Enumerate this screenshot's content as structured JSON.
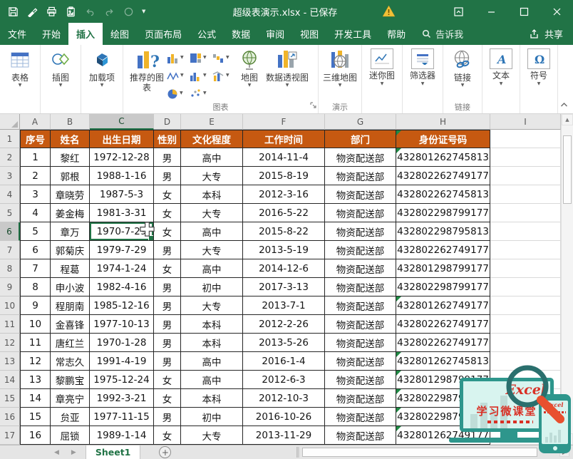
{
  "titlebar": {
    "title": "超级表演示.xlsx - 已保存",
    "quick_access_icons": [
      "save-icon",
      "format-painter-icon",
      "print-icon",
      "paste-picture-icon",
      "undo-icon",
      "redo-icon",
      "circle-icon",
      "customize-qat-caret-icon"
    ],
    "warning_icon": "warning-triangle-icon",
    "window_icons": [
      "ribbon-display-options-icon",
      "minimize-icon",
      "maximize-icon",
      "close-icon"
    ]
  },
  "tabs": [
    {
      "id": "file",
      "label": "文件",
      "active": false
    },
    {
      "id": "home",
      "label": "开始",
      "active": false
    },
    {
      "id": "insert",
      "label": "插入",
      "active": true
    },
    {
      "id": "draw",
      "label": "绘图",
      "active": false
    },
    {
      "id": "page-layout",
      "label": "页面布局",
      "active": false
    },
    {
      "id": "formulas",
      "label": "公式",
      "active": false
    },
    {
      "id": "data",
      "label": "数据",
      "active": false
    },
    {
      "id": "review",
      "label": "审阅",
      "active": false
    },
    {
      "id": "view",
      "label": "视图",
      "active": false
    },
    {
      "id": "developer",
      "label": "开发工具",
      "active": false
    },
    {
      "id": "help",
      "label": "帮助",
      "active": false
    }
  ],
  "tell_me": {
    "label": "告诉我",
    "icon": "search-icon"
  },
  "share": {
    "label": "共享",
    "icon": "share-icon"
  },
  "ribbon": {
    "tables": {
      "label": "表格"
    },
    "illustrations": {
      "label": "插图"
    },
    "addins": {
      "label": "加载项"
    },
    "recommended_charts": {
      "label": "推荐的图表"
    },
    "chart_mini_icons": [
      "column-chart-icon",
      "treemap-chart-icon",
      "waterfall-chart-icon",
      "line-chart-icon",
      "bar-chart-icon",
      "combo-chart-icon",
      "pie-chart-icon",
      "scatter-chart-icon"
    ],
    "maps": {
      "label": "地图"
    },
    "pivot_chart": {
      "label": "数据透视图"
    },
    "charts_group_label": "图表",
    "three_d_map": {
      "label": "三维地图"
    },
    "tours_group_label": "演示",
    "sparklines": {
      "label": "迷你图"
    },
    "slicers": {
      "label": "筛选器"
    },
    "link_button": {
      "label": "链接"
    },
    "links_group_label": "链接",
    "text_button": {
      "label": "文本"
    },
    "symbols": {
      "label": "符号"
    }
  },
  "grid": {
    "column_letters": [
      "A",
      "B",
      "C",
      "D",
      "E",
      "F",
      "G",
      "H",
      "I"
    ],
    "selected_column": "C",
    "selected_row": 6,
    "selected_cell": {
      "ref": "C6",
      "value": "1970-7-29"
    },
    "row_numbers": [
      1,
      2,
      3,
      4,
      5,
      6,
      7,
      8,
      9,
      10,
      11,
      12,
      13,
      14,
      15,
      16,
      17
    ],
    "header_cells": [
      "序号",
      "姓名",
      "出生日期",
      "性别",
      "文化程度",
      "工作时间",
      "部门",
      "身份证号码"
    ],
    "rows": [
      [
        "1",
        "黎红",
        "1972-12-28",
        "男",
        "高中",
        "2014-11-4",
        "物资配送部",
        "432801262745813"
      ],
      [
        "2",
        "郭根",
        "1988-1-16",
        "男",
        "大专",
        "2015-8-19",
        "物资配送部",
        "432802262749177"
      ],
      [
        "3",
        "章晓劳",
        "1987-5-3",
        "女",
        "本科",
        "2012-3-16",
        "物资配送部",
        "432802262745813"
      ],
      [
        "4",
        "姜金梅",
        "1981-3-31",
        "女",
        "大专",
        "2016-5-22",
        "物资配送部",
        "432802298799177"
      ],
      [
        "5",
        "章万",
        "1970-7-29",
        "女",
        "高中",
        "2015-8-22",
        "物资配送部",
        "432802298795813"
      ],
      [
        "6",
        "郭菊庆",
        "1979-7-29",
        "男",
        "大专",
        "2013-5-19",
        "物资配送部",
        "432802262749177"
      ],
      [
        "7",
        "程葛",
        "1974-1-24",
        "女",
        "高中",
        "2014-12-6",
        "物资配送部",
        "432801298799177"
      ],
      [
        "8",
        "申小波",
        "1982-4-16",
        "男",
        "初中",
        "2017-3-13",
        "物资配送部",
        "432802298799177"
      ],
      [
        "9",
        "程朋南",
        "1985-12-16",
        "男",
        "大专",
        "2013-7-1",
        "物资配送部",
        "432801262749177"
      ],
      [
        "10",
        "金喜锋",
        "1977-10-13",
        "男",
        "本科",
        "2012-2-26",
        "物资配送部",
        "432802262749177"
      ],
      [
        "11",
        "唐红兰",
        "1970-1-28",
        "男",
        "本科",
        "2013-5-26",
        "物资配送部",
        "432802262749177"
      ],
      [
        "12",
        "常志久",
        "1991-4-19",
        "男",
        "高中",
        "2016-1-4",
        "物资配送部",
        "432801262745813"
      ],
      [
        "13",
        "黎鹏宝",
        "1975-12-24",
        "女",
        "高中",
        "2012-6-3",
        "物资配送部",
        "432801298799177"
      ],
      [
        "14",
        "章亮宁",
        "1992-3-21",
        "女",
        "本科",
        "2012-10-3",
        "物资配送部",
        "432802298799177"
      ],
      [
        "15",
        "贠亚",
        "1977-11-15",
        "男",
        "初中",
        "2016-10-26",
        "物资配送部",
        "432802298799177"
      ],
      [
        "16",
        "屈锁",
        "1989-1-14",
        "女",
        "大专",
        "2013-11-29",
        "物资配送部",
        "432801262749177"
      ]
    ],
    "error_flag_rows": [
      1,
      2,
      10,
      13,
      14,
      15,
      16,
      17
    ]
  },
  "sheetbar": {
    "sheet_name": "Sheet1",
    "add_glyph": "+",
    "nav_icons": [
      "sheet-prev-icon",
      "sheet-next-icon"
    ]
  },
  "watermark": {
    "brand": "Excel",
    "title": "学习微课堂",
    "phone_brand": "Excel"
  },
  "colors": {
    "excel_green": "#217346",
    "header_orange": "#C65911",
    "selection_green": "#217346",
    "error_flag_green": "#1F8A44",
    "warning_yellow": "#F2C037",
    "watermark_teal": "#2E968C",
    "watermark_red": "#D93025"
  }
}
